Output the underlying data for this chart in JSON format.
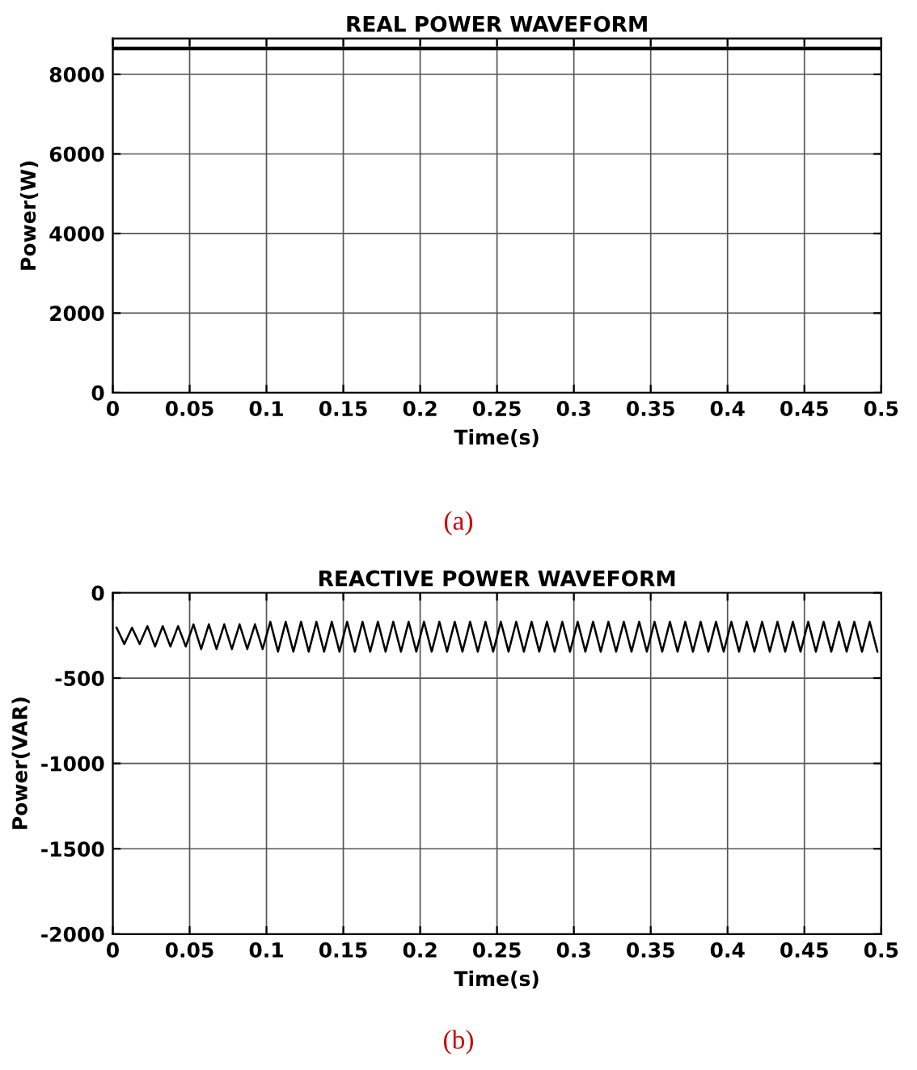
{
  "chart_data": [
    {
      "type": "line",
      "title": "REAL POWER WAVEFORM",
      "xlabel": "Time(s)",
      "ylabel": "Power(W)",
      "annotations": [
        "(a)"
      ],
      "x": [
        0,
        0.5
      ],
      "series": [
        {
          "color": "#000000",
          "values": [
            8650,
            8650
          ]
        }
      ],
      "xlim": [
        0,
        0.5
      ],
      "ylim": [
        0,
        8900
      ],
      "xticks": [
        0,
        0.05,
        0.1,
        0.15,
        0.2,
        0.25,
        0.3,
        0.35,
        0.4,
        0.45,
        0.5
      ],
      "yticks": [
        0,
        2000,
        4000,
        6000,
        8000
      ],
      "grid": true
    },
    {
      "type": "line",
      "title": "REACTIVE POWER WAVEFORM",
      "xlabel": "Time(s)",
      "ylabel": "Power(VAR)",
      "annotations": [
        "(b)"
      ],
      "x": [
        0.0025,
        0.0075,
        0.0125,
        0.0175,
        0.0225,
        0.0275,
        0.0325,
        0.0375,
        0.0425,
        0.0475,
        0.0525,
        0.0575,
        0.0625,
        0.0675,
        0.0725,
        0.0775,
        0.0825,
        0.0875,
        0.0925,
        0.0975,
        0.1025,
        0.1075,
        0.1125,
        0.1175,
        0.1225,
        0.1275,
        0.1325,
        0.1375,
        0.1425,
        0.1475,
        0.1525,
        0.1575,
        0.1625,
        0.1675,
        0.1725,
        0.1775,
        0.1825,
        0.1875,
        0.1925,
        0.1975,
        0.2025,
        0.2075,
        0.2125,
        0.2175,
        0.2225,
        0.2275,
        0.2325,
        0.2375,
        0.2425,
        0.2475,
        0.2525,
        0.2575,
        0.2625,
        0.2675,
        0.2725,
        0.2775,
        0.2825,
        0.2875,
        0.2925,
        0.2975,
        0.3025,
        0.3075,
        0.3125,
        0.3175,
        0.3225,
        0.3275,
        0.3325,
        0.3375,
        0.3425,
        0.3475,
        0.3525,
        0.3575,
        0.3625,
        0.3675,
        0.3725,
        0.3775,
        0.3825,
        0.3875,
        0.3925,
        0.3975,
        0.4025,
        0.4075,
        0.4125,
        0.4175,
        0.4225,
        0.4275,
        0.4325,
        0.4375,
        0.4425,
        0.4475,
        0.4525,
        0.4575,
        0.4625,
        0.4675,
        0.4725,
        0.4775,
        0.4825,
        0.4875,
        0.4925,
        0.4975
      ],
      "series": [
        {
          "color": "#000000",
          "values": [
            -205,
            -300,
            -205,
            -300,
            -195,
            -315,
            -195,
            -315,
            -195,
            -315,
            -185,
            -330,
            -185,
            -330,
            -185,
            -330,
            -185,
            -330,
            -185,
            -330,
            -170,
            -345,
            -170,
            -345,
            -170,
            -345,
            -170,
            -345,
            -170,
            -345,
            -170,
            -345,
            -170,
            -345,
            -170,
            -345,
            -170,
            -345,
            -170,
            -345,
            -170,
            -345,
            -170,
            -345,
            -170,
            -345,
            -170,
            -345,
            -170,
            -345,
            -170,
            -345,
            -170,
            -345,
            -170,
            -345,
            -170,
            -345,
            -170,
            -345,
            -170,
            -345,
            -170,
            -345,
            -170,
            -345,
            -170,
            -345,
            -170,
            -345,
            -170,
            -345,
            -170,
            -345,
            -170,
            -345,
            -170,
            -345,
            -170,
            -345,
            -170,
            -345,
            -170,
            -345,
            -170,
            -345,
            -170,
            -345,
            -170,
            -345,
            -170,
            -345,
            -170,
            -345,
            -170,
            -345,
            -170,
            -345,
            -170,
            -345
          ]
        }
      ],
      "xlim": [
        0,
        0.5
      ],
      "ylim": [
        -2000,
        0
      ],
      "xticks": [
        0,
        0.05,
        0.1,
        0.15,
        0.2,
        0.25,
        0.3,
        0.35,
        0.4,
        0.45,
        0.5
      ],
      "yticks": [
        -2000,
        -1500,
        -1000,
        -500,
        0
      ],
      "grid": true
    }
  ]
}
